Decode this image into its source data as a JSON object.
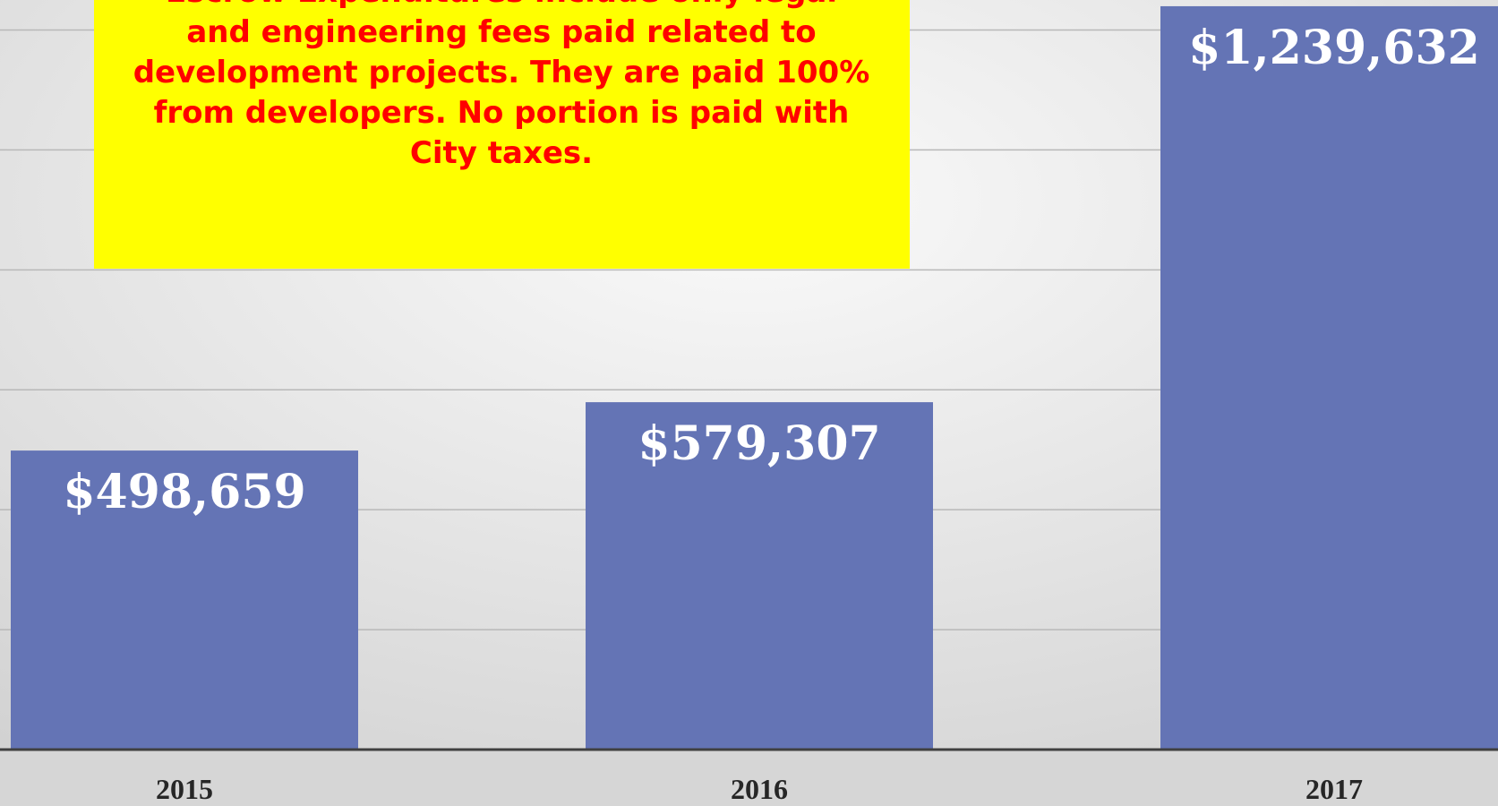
{
  "chart_data": {
    "type": "bar",
    "annotation": [
      "Escrow Expenditures include only legal",
      "and engineering fees paid related to",
      "development projects. They are paid 100%",
      "from developers. No portion is paid with",
      "City taxes."
    ],
    "categories": [
      "2015",
      "2016",
      "2017"
    ],
    "values": [
      498659,
      579307,
      1239632
    ],
    "value_labels": [
      "$498,659",
      "$579,307",
      "$1,239,632"
    ],
    "color": "#6474b5",
    "ylim": [
      0,
      1250000
    ],
    "yticks": [
      0,
      200000,
      400000,
      600000,
      800000,
      1000000,
      1200000
    ],
    "grid": true
  }
}
